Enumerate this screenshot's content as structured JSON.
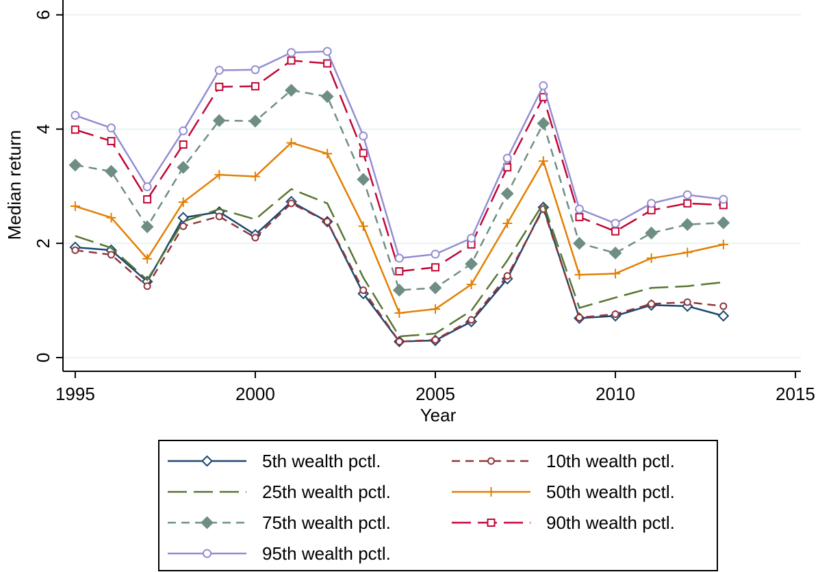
{
  "chart_data": {
    "type": "line",
    "x_label": "Year",
    "y_label": "Median return",
    "x": [
      1995,
      1996,
      1997,
      1998,
      1999,
      2000,
      2001,
      2002,
      2003,
      2004,
      2005,
      2006,
      2007,
      2008,
      2009,
      2010,
      2011,
      2012,
      2013
    ],
    "xlim": [
      1994.66,
      2015.15
    ],
    "xticks": [
      1995,
      2000,
      2005,
      2010,
      2015
    ],
    "ylim": [
      -0.24,
      6.26
    ],
    "yticks": [
      0,
      2,
      4,
      6
    ],
    "grid": true,
    "series": [
      {
        "name": "5th wealth pctl.",
        "color": "#1a476f",
        "dash": "solid",
        "marker": "diamond-hollow",
        "values": [
          1.93,
          1.88,
          1.33,
          2.45,
          2.55,
          2.15,
          2.73,
          2.38,
          1.12,
          0.28,
          0.3,
          0.63,
          1.38,
          2.63,
          0.69,
          0.73,
          0.92,
          0.9,
          0.73
        ]
      },
      {
        "name": "10th wealth pctl.",
        "color": "#90353b",
        "dash": "dash",
        "marker": "circle-hollow-small",
        "values": [
          1.88,
          1.8,
          1.25,
          2.3,
          2.47,
          2.1,
          2.7,
          2.38,
          1.18,
          0.28,
          0.31,
          0.66,
          1.43,
          2.6,
          0.7,
          0.76,
          0.94,
          0.97,
          0.9
        ]
      },
      {
        "name": "25th wealth pctl.",
        "color": "#55752f",
        "dash": "longdash",
        "marker": "none",
        "values": [
          2.13,
          1.92,
          1.36,
          2.38,
          2.6,
          2.42,
          2.95,
          2.7,
          1.4,
          0.37,
          0.42,
          0.82,
          1.7,
          2.7,
          0.87,
          1.05,
          1.22,
          1.25,
          1.32
        ]
      },
      {
        "name": "50th wealth pctl.",
        "color": "#e37e00",
        "dash": "solid",
        "marker": "plus",
        "values": [
          2.65,
          2.45,
          1.73,
          2.72,
          3.2,
          3.17,
          3.76,
          3.57,
          2.3,
          0.78,
          0.85,
          1.28,
          2.35,
          3.44,
          1.45,
          1.47,
          1.74,
          1.84,
          1.98
        ]
      },
      {
        "name": "75th wealth pctl.",
        "color": "#6e8e84",
        "dash": "dash",
        "marker": "diamond",
        "values": [
          3.37,
          3.26,
          2.29,
          3.33,
          4.15,
          4.14,
          4.68,
          4.57,
          3.12,
          1.18,
          1.22,
          1.64,
          2.87,
          4.1,
          2.0,
          1.83,
          2.18,
          2.33,
          2.36
        ]
      },
      {
        "name": "90th wealth pctl.",
        "color": "#c10534",
        "dash": "longdash",
        "marker": "square-hollow",
        "values": [
          3.99,
          3.79,
          2.77,
          3.73,
          4.74,
          4.75,
          5.2,
          5.15,
          3.58,
          1.51,
          1.58,
          1.98,
          3.33,
          4.56,
          2.46,
          2.21,
          2.58,
          2.7,
          2.67
        ]
      },
      {
        "name": "95th wealth pctl.",
        "color": "#938dd2",
        "dash": "solid",
        "marker": "circle-hollow",
        "values": [
          4.24,
          4.02,
          2.99,
          3.97,
          5.03,
          5.04,
          5.34,
          5.36,
          3.88,
          1.74,
          1.81,
          2.09,
          3.49,
          4.76,
          2.6,
          2.35,
          2.7,
          2.85,
          2.77
        ]
      }
    ]
  }
}
